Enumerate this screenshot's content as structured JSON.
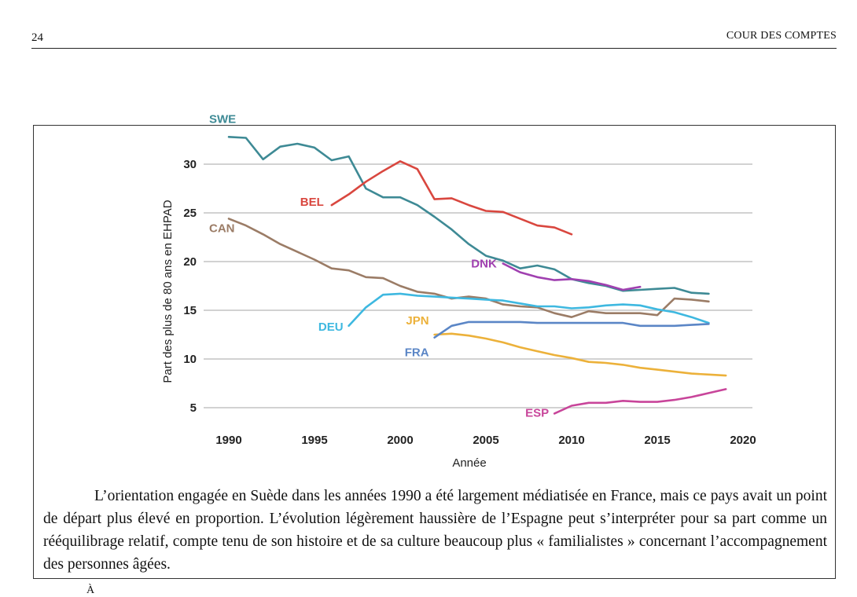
{
  "header": {
    "page_number": "24",
    "running_title": "COUR DES COMPTES"
  },
  "chart_data": {
    "type": "line",
    "title": "",
    "xlabel": "Année",
    "ylabel": "Part des plus de 80 ans en EHPAD",
    "xlim": [
      1990,
      2020
    ],
    "ylim": [
      3.5,
      33
    ],
    "xticks": [
      1990,
      1995,
      2000,
      2005,
      2010,
      2015,
      2020
    ],
    "yticks": [
      5,
      10,
      15,
      20,
      25,
      30
    ],
    "grid": "horizontal",
    "legend": "labels next to lines",
    "series": [
      {
        "name": "SWE",
        "color": "#3e8a95",
        "x": [
          1990,
          1991,
          1992,
          1993,
          1994,
          1995,
          1996,
          1997,
          1998,
          1999,
          2000,
          2001,
          2002,
          2003,
          2004,
          2005,
          2006,
          2007,
          2008,
          2009,
          2010,
          2011,
          2012,
          2013,
          2014,
          2015,
          2016,
          2017,
          2018
        ],
        "y": [
          32.8,
          32.7,
          30.5,
          31.8,
          32.1,
          31.7,
          30.4,
          30.8,
          27.5,
          26.6,
          26.6,
          25.8,
          24.6,
          23.3,
          21.8,
          20.6,
          20.1,
          19.3,
          19.6,
          19.2,
          18.2,
          17.8,
          17.5,
          17.0,
          17.1,
          17.2,
          17.3,
          16.8,
          16.7
        ]
      },
      {
        "name": "BEL",
        "color": "#d9473f",
        "x": [
          1996,
          1997,
          1998,
          1999,
          2000,
          2001,
          2002,
          2003,
          2004,
          2005,
          2006,
          2007,
          2008,
          2009,
          2010
        ],
        "y": [
          25.8,
          26.9,
          28.2,
          29.3,
          30.3,
          29.5,
          26.4,
          26.5,
          25.8,
          25.2,
          25.1,
          24.4,
          23.7,
          23.5,
          22.8
        ]
      },
      {
        "name": "CAN",
        "color": "#9b7c66",
        "x": [
          1990,
          1991,
          1992,
          1993,
          1994,
          1995,
          1996,
          1997,
          1998,
          1999,
          2000,
          2001,
          2002,
          2003,
          2004,
          2005,
          2006,
          2007,
          2008,
          2009,
          2010,
          2011,
          2012,
          2013,
          2014,
          2015,
          2016,
          2017,
          2018
        ],
        "y": [
          24.4,
          23.7,
          22.8,
          21.8,
          21.0,
          20.2,
          19.3,
          19.1,
          18.4,
          18.3,
          17.5,
          16.9,
          16.7,
          16.2,
          16.4,
          16.2,
          15.6,
          15.4,
          15.3,
          14.7,
          14.3,
          14.9,
          14.7,
          14.7,
          14.7,
          14.5,
          16.2,
          16.1,
          15.9
        ]
      },
      {
        "name": "DEU",
        "color": "#3eb8e0",
        "x": [
          1997,
          1998,
          1999,
          2000,
          2001,
          2002,
          2003,
          2004,
          2005,
          2006,
          2007,
          2008,
          2009,
          2010,
          2011,
          2012,
          2013,
          2014,
          2015,
          2016,
          2017,
          2018
        ],
        "y": [
          13.4,
          15.3,
          16.6,
          16.7,
          16.5,
          16.4,
          16.3,
          16.2,
          16.1,
          16.0,
          15.7,
          15.4,
          15.4,
          15.2,
          15.3,
          15.5,
          15.6,
          15.5,
          15.1,
          14.8,
          14.3,
          13.7
        ]
      },
      {
        "name": "DNK",
        "color": "#a040b0",
        "x": [
          2006,
          2007,
          2008,
          2009,
          2010,
          2011,
          2012,
          2013,
          2014
        ],
        "y": [
          19.8,
          18.9,
          18.4,
          18.1,
          18.2,
          18.0,
          17.6,
          17.1,
          17.4
        ]
      },
      {
        "name": "JPN",
        "color": "#ecb13a",
        "x": [
          2002,
          2003,
          2004,
          2005,
          2006,
          2007,
          2008,
          2009,
          2010,
          2011,
          2012,
          2013,
          2014,
          2015,
          2016,
          2017,
          2018,
          2019
        ],
        "y": [
          12.5,
          12.6,
          12.4,
          12.1,
          11.7,
          11.2,
          10.8,
          10.4,
          10.1,
          9.7,
          9.6,
          9.4,
          9.1,
          8.9,
          8.7,
          8.5,
          8.4,
          8.3
        ]
      },
      {
        "name": "FRA",
        "color": "#5b86c6",
        "x": [
          2002,
          2003,
          2004,
          2005,
          2006,
          2007,
          2008,
          2009,
          2010,
          2011,
          2012,
          2013,
          2014,
          2015,
          2016,
          2017,
          2018
        ],
        "y": [
          12.2,
          13.4,
          13.8,
          13.8,
          13.8,
          13.8,
          13.7,
          13.7,
          13.7,
          13.7,
          13.7,
          13.7,
          13.4,
          13.4,
          13.4,
          13.5,
          13.6
        ]
      },
      {
        "name": "ESP",
        "color": "#c8459a",
        "x": [
          2009,
          2010,
          2011,
          2012,
          2013,
          2014,
          2015,
          2016,
          2017,
          2018,
          2019
        ],
        "y": [
          4.4,
          5.2,
          5.5,
          5.5,
          5.7,
          5.6,
          5.6,
          5.8,
          6.1,
          6.5,
          6.9
        ]
      }
    ]
  },
  "caption": {
    "text": "L’orientation engagée en Suède dans les années 1990 a été largement médiatisée en France, mais ce pays avait un point de départ plus élevé en proportion. L’évolution légèrement haussière de l’Espagne peut s’interpréter pour sa part comme un rééquilibrage relatif, compte tenu de son histoire et de sa culture beaucoup plus « familialistes » concernant l’accompagnement des personnes âgées."
  },
  "footer": {
    "overflow_glyph": "À"
  }
}
